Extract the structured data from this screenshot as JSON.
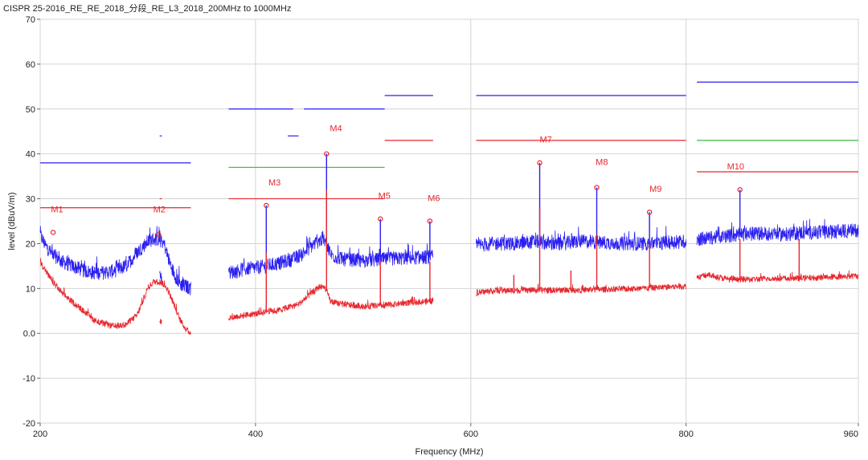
{
  "chart_data": {
    "type": "line",
    "title": "CISPR 25-2016_RE_RE_2018_分段_RE_L3_2018_200MHz to 1000MHz",
    "xlabel": "Frequency (MHz)",
    "ylabel": "level (dBuV/m)",
    "xlim": [
      200,
      960
    ],
    "ylim": [
      -20,
      70
    ],
    "x_ticks": [
      {
        "value": 200,
        "label": "200"
      },
      {
        "value": 400,
        "label": "400"
      },
      {
        "value": 600,
        "label": "600"
      },
      {
        "value": 800,
        "label": "800"
      },
      {
        "value": 960,
        "label": "960"
      }
    ],
    "y_ticks": [
      {
        "value": 70,
        "label": "70"
      },
      {
        "value": 60,
        "label": "60"
      },
      {
        "value": 50,
        "label": "50"
      },
      {
        "value": 40,
        "label": "40"
      },
      {
        "value": 30,
        "label": "30"
      },
      {
        "value": 20,
        "label": "20"
      },
      {
        "value": 10,
        "label": "10"
      },
      {
        "value": 0,
        "label": "0.0"
      },
      {
        "value": -10,
        "label": "-10"
      },
      {
        "value": -20,
        "label": "-20"
      }
    ],
    "grid": true,
    "colors": {
      "peak": "#2a1ff0",
      "average": "#e8262d",
      "limit_green": "#3db83d"
    },
    "limit_lines": [
      {
        "color": "#2a1ff0",
        "y": 38,
        "x": [
          200,
          340
        ]
      },
      {
        "color": "#e8262d",
        "y": 28,
        "x": [
          200,
          340
        ]
      },
      {
        "color": "#2a1ff0",
        "y": 44,
        "x": [
          311,
          313
        ]
      },
      {
        "color": "#e8262d",
        "y": 30,
        "x": [
          311,
          313
        ]
      },
      {
        "color": "#2a1ff0",
        "y": 50,
        "x": [
          375,
          435
        ]
      },
      {
        "color": "#2a1ff0",
        "y": 44,
        "x": [
          430,
          440
        ]
      },
      {
        "color": "#2a1ff0",
        "y": 50,
        "x": [
          445,
          520
        ]
      },
      {
        "color": "#3db83d",
        "y": 37,
        "x": [
          375,
          520
        ]
      },
      {
        "color": "#e8262d",
        "y": 30,
        "x": [
          375,
          520
        ]
      },
      {
        "color": "#2a1ff0",
        "y": 53,
        "x": [
          520,
          565
        ]
      },
      {
        "color": "#e8262d",
        "y": 43,
        "x": [
          520,
          565
        ]
      },
      {
        "color": "#2a1ff0",
        "y": 53,
        "x": [
          605,
          800
        ]
      },
      {
        "color": "#e8262d",
        "y": 43,
        "x": [
          605,
          800
        ]
      },
      {
        "color": "#2a1ff0",
        "y": 56,
        "x": [
          810,
          960
        ]
      },
      {
        "color": "#3db83d",
        "y": 43,
        "x": [
          810,
          960
        ]
      },
      {
        "color": "#e8262d",
        "y": 36,
        "x": [
          810,
          960
        ]
      }
    ],
    "series": [
      {
        "color": "#2a1ff0",
        "segments": [
          [
            [
              200,
              22
            ],
            [
              205,
              19.5
            ],
            [
              210,
              18
            ],
            [
              220,
              16
            ],
            [
              230,
              15
            ],
            [
              240,
              14
            ],
            [
              250,
              13.5
            ],
            [
              260,
              13.5
            ],
            [
              270,
              14
            ],
            [
              280,
              15
            ],
            [
              290,
              18
            ],
            [
              300,
              20.5
            ],
            [
              305,
              21
            ],
            [
              310,
              21
            ],
            [
              315,
              20
            ],
            [
              320,
              16
            ],
            [
              325,
              13
            ],
            [
              330,
              11
            ],
            [
              335,
              10.5
            ],
            [
              340,
              10
            ]
          ],
          [
            [
              311,
              14
            ],
            [
              312,
              13
            ],
            [
              313,
              12.5
            ]
          ],
          [
            [
              375,
              13.5
            ],
            [
              385,
              14
            ],
            [
              395,
              14.5
            ],
            [
              405,
              14.8
            ],
            [
              410,
              15
            ],
            [
              420,
              15.5
            ],
            [
              435,
              16.5
            ],
            [
              445,
              18
            ],
            [
              455,
              20
            ],
            [
              462,
              21
            ],
            [
              466,
              20
            ],
            [
              470,
              17.5
            ],
            [
              480,
              16.5
            ],
            [
              500,
              16.2
            ],
            [
              520,
              16.5
            ],
            [
              540,
              16.8
            ],
            [
              565,
              17
            ]
          ],
          [
            [
              605,
              19.5
            ],
            [
              620,
              20
            ],
            [
              640,
              20
            ],
            [
              660,
              20.5
            ],
            [
              680,
              19.8
            ],
            [
              700,
              20.5
            ],
            [
              720,
              20.3
            ],
            [
              740,
              20
            ],
            [
              760,
              20
            ],
            [
              780,
              20.2
            ],
            [
              800,
              20.5
            ]
          ],
          [
            [
              810,
              21
            ],
            [
              830,
              21.5
            ],
            [
              850,
              22
            ],
            [
              870,
              22.3
            ],
            [
              890,
              22
            ],
            [
              910,
              22.5
            ],
            [
              930,
              22.5
            ],
            [
              960,
              23
            ]
          ]
        ],
        "noise": 1.6
      },
      {
        "color": "#e8262d",
        "segments": [
          [
            [
              200,
              16
            ],
            [
              210,
              12
            ],
            [
              220,
              9
            ],
            [
              230,
              7
            ],
            [
              240,
              5
            ],
            [
              250,
              3
            ],
            [
              260,
              2
            ],
            [
              270,
              1.5
            ],
            [
              280,
              2
            ],
            [
              290,
              4
            ],
            [
              295,
              7
            ],
            [
              300,
              10
            ],
            [
              305,
              11.5
            ],
            [
              312,
              11.5
            ],
            [
              318,
              10
            ],
            [
              325,
              6
            ],
            [
              330,
              3
            ],
            [
              335,
              1
            ],
            [
              340,
              0
            ]
          ],
          [
            [
              311,
              3
            ],
            [
              312,
              2.6
            ],
            [
              313,
              2.4
            ]
          ],
          [
            [
              375,
              3.5
            ],
            [
              390,
              4
            ],
            [
              405,
              4.5
            ],
            [
              410,
              5
            ],
            [
              420,
              5
            ],
            [
              440,
              6.5
            ],
            [
              450,
              8.5
            ],
            [
              460,
              10.5
            ],
            [
              465,
              10
            ],
            [
              470,
              7
            ],
            [
              480,
              6.5
            ],
            [
              500,
              6
            ],
            [
              520,
              6.2
            ],
            [
              540,
              6.8
            ],
            [
              565,
              7.2
            ]
          ],
          [
            [
              605,
              9
            ],
            [
              620,
              9.5
            ],
            [
              650,
              9.6
            ],
            [
              680,
              9.6
            ],
            [
              700,
              9.7
            ],
            [
              730,
              9.8
            ],
            [
              760,
              10
            ],
            [
              780,
              10.3
            ],
            [
              800,
              10.5
            ]
          ],
          [
            [
              810,
              12.5
            ],
            [
              820,
              13
            ],
            [
              840,
              12
            ],
            [
              860,
              12
            ],
            [
              880,
              12.2
            ],
            [
              900,
              12.2
            ],
            [
              930,
              12.5
            ],
            [
              960,
              12.8
            ]
          ]
        ],
        "noise": 0.7
      }
    ],
    "markers": [
      {
        "label": "M1",
        "x": 212,
        "y": 22.5,
        "label_x": 210,
        "label_y": 27
      },
      {
        "label": "M2",
        "x": 310,
        "y": 22,
        "label_x": 305,
        "label_y": 27
      },
      {
        "label": "M3",
        "x": 410,
        "y": 28.5,
        "label_x": 412,
        "label_y": 33
      },
      {
        "label": "M4",
        "x": 466,
        "y": 40,
        "label_x": 469,
        "label_y": 45
      },
      {
        "label": "M5",
        "x": 516,
        "y": 25.5,
        "label_x": 514,
        "label_y": 30
      },
      {
        "label": "M6",
        "x": 562,
        "y": 25,
        "label_x": 560,
        "label_y": 29.5
      },
      {
        "label": "M7",
        "x": 664,
        "y": 38,
        "label_x": 664,
        "label_y": 42.5
      },
      {
        "label": "M8",
        "x": 717,
        "y": 32.5,
        "label_x": 716,
        "label_y": 37.5
      },
      {
        "label": "M9",
        "x": 766,
        "y": 27,
        "label_x": 766,
        "label_y": 31.5
      },
      {
        "label": "M10",
        "x": 850,
        "y": 32,
        "label_x": 838,
        "label_y": 36.5
      }
    ],
    "spikes": [
      {
        "color": "#2a1ff0",
        "x": 410,
        "top": 28.5,
        "base": 15
      },
      {
        "color": "#2a1ff0",
        "x": 466,
        "top": 40,
        "base": 21
      },
      {
        "color": "#2a1ff0",
        "x": 516,
        "top": 25.5,
        "base": 16.3
      },
      {
        "color": "#2a1ff0",
        "x": 562,
        "top": 25,
        "base": 17
      },
      {
        "color": "#2a1ff0",
        "x": 664,
        "top": 38,
        "base": 20.5
      },
      {
        "color": "#2a1ff0",
        "x": 717,
        "top": 32.5,
        "base": 20.5
      },
      {
        "color": "#2a1ff0",
        "x": 766,
        "top": 27,
        "base": 20
      },
      {
        "color": "#2a1ff0",
        "x": 850,
        "top": 32,
        "base": 22
      },
      {
        "color": "#e8262d",
        "x": 410,
        "top": 18,
        "base": 5
      },
      {
        "color": "#e8262d",
        "x": 466,
        "top": 32,
        "base": 10
      },
      {
        "color": "#e8262d",
        "x": 516,
        "top": 16,
        "base": 6.2
      },
      {
        "color": "#e8262d",
        "x": 562,
        "top": 16,
        "base": 7.2
      },
      {
        "color": "#e8262d",
        "x": 664,
        "top": 28,
        "base": 9.6
      },
      {
        "color": "#e8262d",
        "x": 717,
        "top": 22,
        "base": 9.7
      },
      {
        "color": "#e8262d",
        "x": 766,
        "top": 20,
        "base": 10.1
      },
      {
        "color": "#e8262d",
        "x": 850,
        "top": 21,
        "base": 12.1
      },
      {
        "color": "#e8262d",
        "x": 905,
        "top": 21,
        "base": 12.3
      },
      {
        "color": "#e8262d",
        "x": 693,
        "top": 14,
        "base": 9.7
      },
      {
        "color": "#e8262d",
        "x": 640,
        "top": 13,
        "base": 9.6
      }
    ]
  }
}
